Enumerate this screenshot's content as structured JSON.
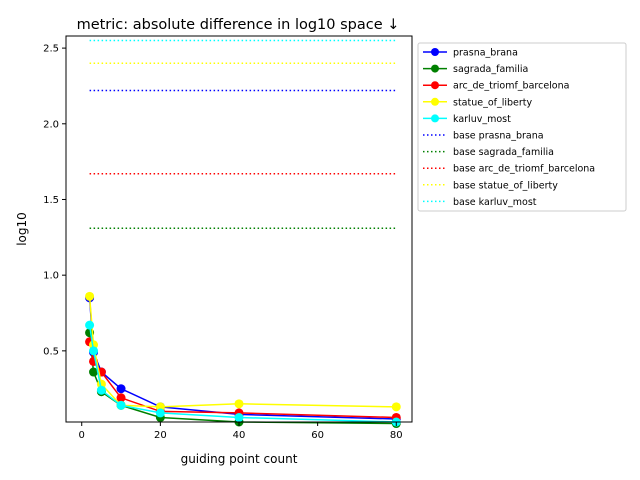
{
  "chart_data": {
    "type": "line",
    "title": "metric: absolute difference in log10 space ↓",
    "xlabel": "guiding point count",
    "ylabel": "log10",
    "xlim": [
      -4,
      84
    ],
    "ylim": [
      0.03,
      2.58
    ],
    "xticks": [
      0,
      20,
      40,
      60,
      80
    ],
    "yticks": [
      0.5,
      1.0,
      1.5,
      2.0,
      2.5
    ],
    "xtick_labels": [
      "0",
      "20",
      "40",
      "60",
      "80"
    ],
    "ytick_labels": [
      "0.5",
      "1.0",
      "1.5",
      "2.0",
      "2.5"
    ],
    "grid": false,
    "legend_position": "outside-right-top",
    "x": [
      2,
      3,
      5,
      10,
      20,
      40,
      80
    ],
    "series": [
      {
        "name": "prasna_brana",
        "color": "#0000ff",
        "values": [
          0.85,
          0.49,
          0.36,
          0.25,
          0.13,
          0.08,
          0.05
        ]
      },
      {
        "name": "sagrada_familia",
        "color": "#008000",
        "values": [
          0.62,
          0.36,
          0.23,
          0.14,
          0.06,
          0.03,
          0.02
        ]
      },
      {
        "name": "arc_de_triomf_barcelona",
        "color": "#ff0000",
        "values": [
          0.56,
          0.43,
          0.36,
          0.19,
          0.1,
          0.09,
          0.06
        ]
      },
      {
        "name": "statue_of_liberty",
        "color": "#ffff00",
        "values": [
          0.86,
          0.54,
          0.28,
          0.14,
          0.13,
          0.15,
          0.13
        ]
      },
      {
        "name": "karluv_most",
        "color": "#00ffff",
        "values": [
          0.67,
          0.5,
          0.24,
          0.14,
          0.09,
          0.06,
          0.03
        ]
      }
    ],
    "baselines": [
      {
        "name": "base prasna_brana",
        "color": "#0000ff",
        "value": 2.22
      },
      {
        "name": "base sagrada_familia",
        "color": "#008000",
        "value": 1.31
      },
      {
        "name": "base arc_de_triomf_barcelona",
        "color": "#ff0000",
        "value": 1.67
      },
      {
        "name": "base statue_of_liberty",
        "color": "#ffff00",
        "value": 2.4
      },
      {
        "name": "base karluv_most",
        "color": "#00ffff",
        "value": 2.55
      }
    ]
  }
}
